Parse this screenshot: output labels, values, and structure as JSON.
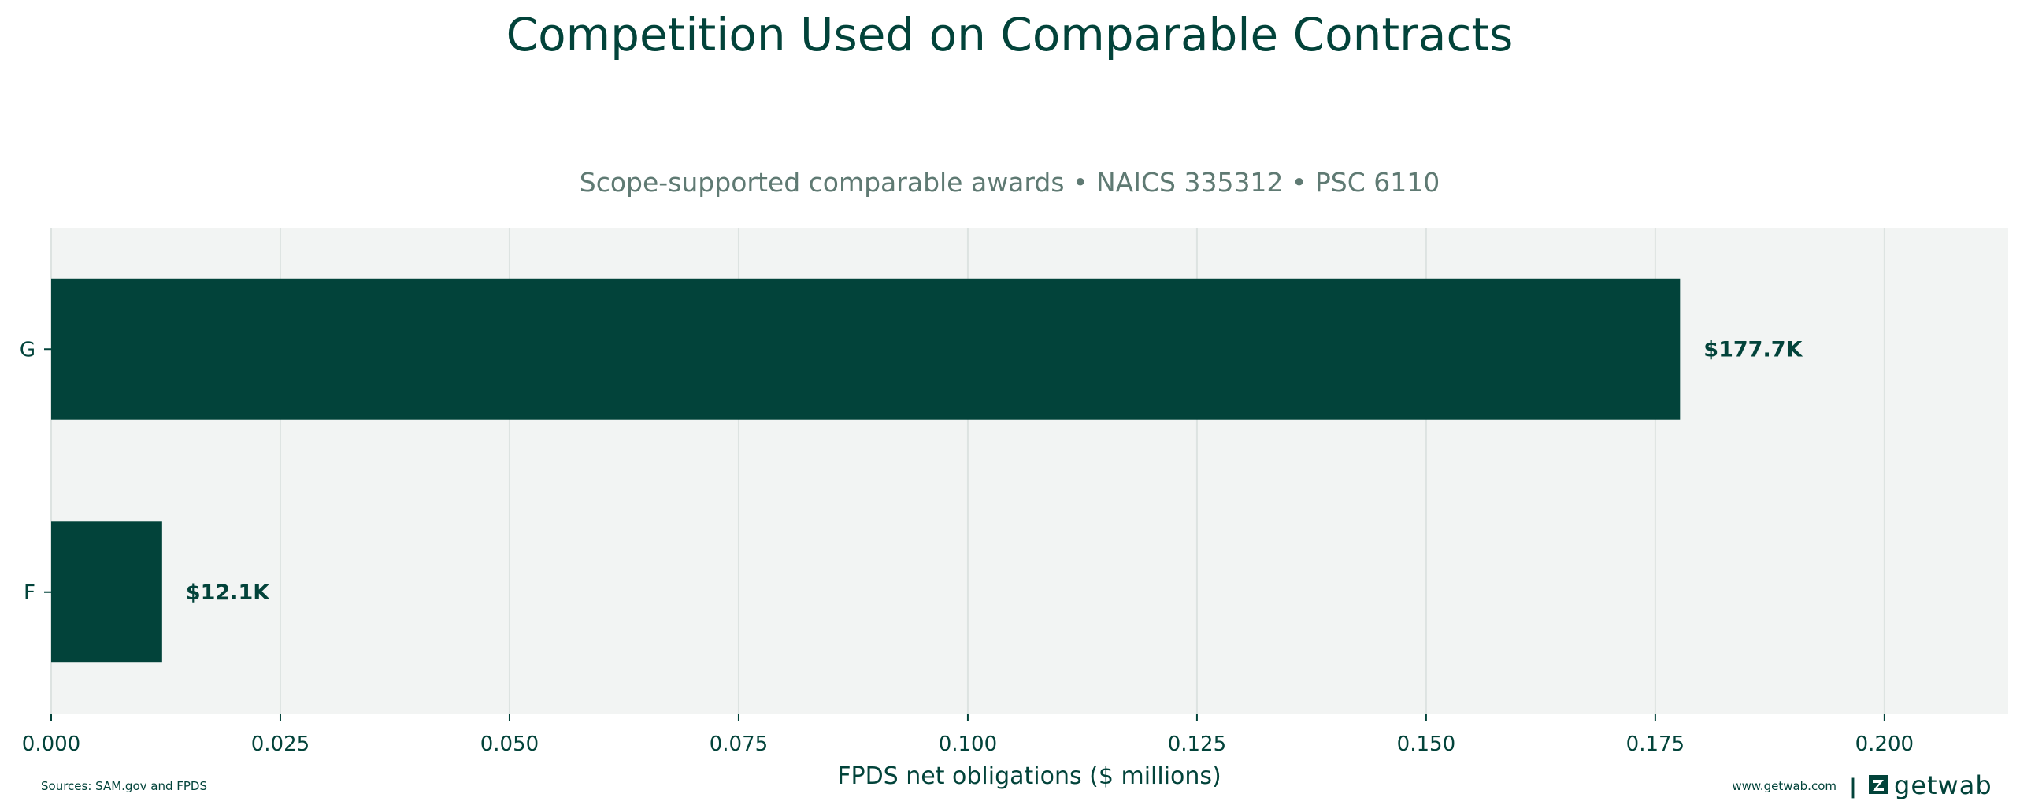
{
  "chart_data": {
    "type": "bar",
    "orientation": "horizontal",
    "title": "Competition Used on Comparable Contracts",
    "subtitle": "Scope-supported comparable awards • NAICS 335312 • PSC 6110",
    "xlabel": "FPDS net obligations ($ millions)",
    "ylabel": "",
    "categories": [
      "G",
      "F"
    ],
    "values": [
      0.1777,
      0.0121
    ],
    "data_labels": [
      "$177.7K",
      "$12.1K"
    ],
    "xlim": [
      0,
      0.2135
    ],
    "xticks": [
      0.0,
      0.025,
      0.05,
      0.075,
      0.1,
      0.125,
      0.15,
      0.175,
      0.2
    ],
    "xtick_labels": [
      "0.000",
      "0.025",
      "0.050",
      "0.075",
      "0.100",
      "0.125",
      "0.150",
      "0.175",
      "0.200"
    ],
    "grid": "vertical",
    "colors": {
      "bar": "#02433a",
      "plot_bg": "#f2f4f3",
      "grid": "#dde3e1",
      "text": "#02433a",
      "subtitle": "#5f7a73"
    }
  },
  "footer": {
    "sources": "Sources: SAM.gov and FPDS",
    "website": "www.getwab.com",
    "separator": "|",
    "brand": "getwab",
    "brand_icon": "getwab-logo-icon"
  }
}
